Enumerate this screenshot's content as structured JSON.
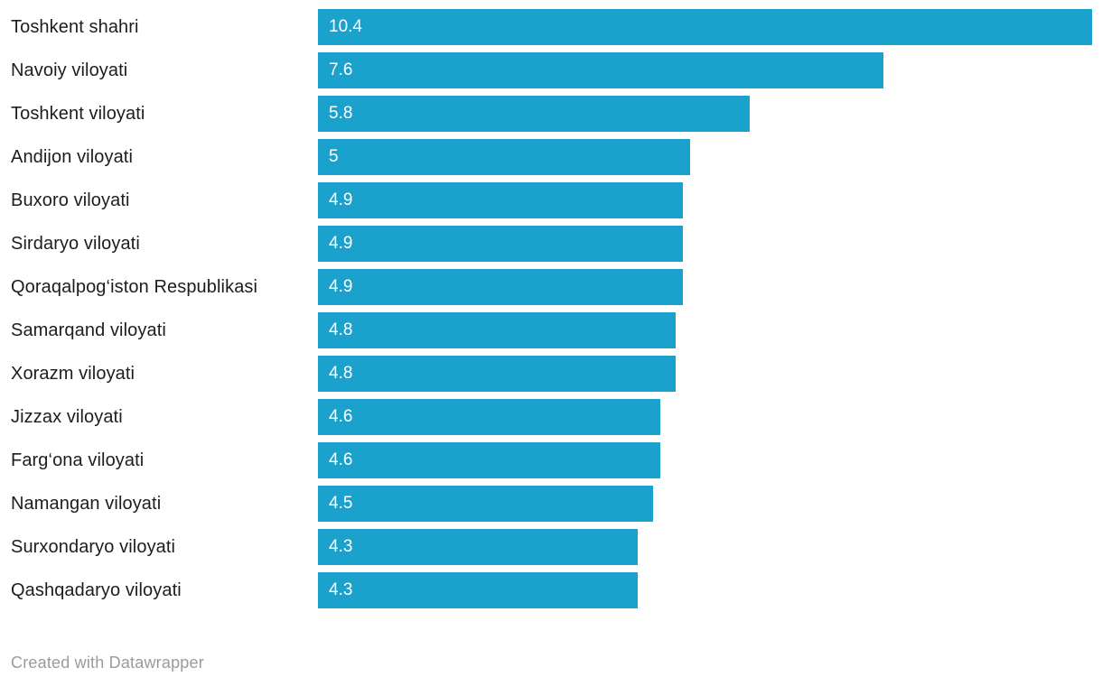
{
  "chart_data": {
    "type": "bar",
    "orientation": "horizontal",
    "categories": [
      "Toshkent shahri",
      "Navoiy viloyati",
      "Toshkent viloyati",
      "Andijon viloyati",
      "Buxoro viloyati",
      "Sirdaryo viloyati",
      "Qoraqalpog‘iston Respublikasi",
      "Samarqand viloyati",
      "Xorazm viloyati",
      "Jizzax viloyati",
      "Farg‘ona viloyati",
      "Namangan viloyati",
      "Surxondaryo viloyati",
      "Qashqadaryo viloyati"
    ],
    "values": [
      10.4,
      7.6,
      5.8,
      5,
      4.9,
      4.9,
      4.9,
      4.8,
      4.8,
      4.6,
      4.6,
      4.5,
      4.3,
      4.3
    ],
    "value_labels": [
      "10.4",
      "7.6",
      "5.8",
      "5",
      "4.9",
      "4.9",
      "4.9",
      "4.8",
      "4.8",
      "4.6",
      "4.6",
      "4.5",
      "4.3",
      "4.3"
    ],
    "title": "",
    "xlabel": "",
    "ylabel": "",
    "xlim": [
      0,
      10.4
    ],
    "grid": false,
    "legend": false,
    "bar_color": "#1aa2cd",
    "value_label_color": "#ffffff",
    "category_label_color": "#1d1d1d"
  },
  "footer": {
    "attribution": "Created with Datawrapper",
    "color": "#9b9b9b"
  }
}
